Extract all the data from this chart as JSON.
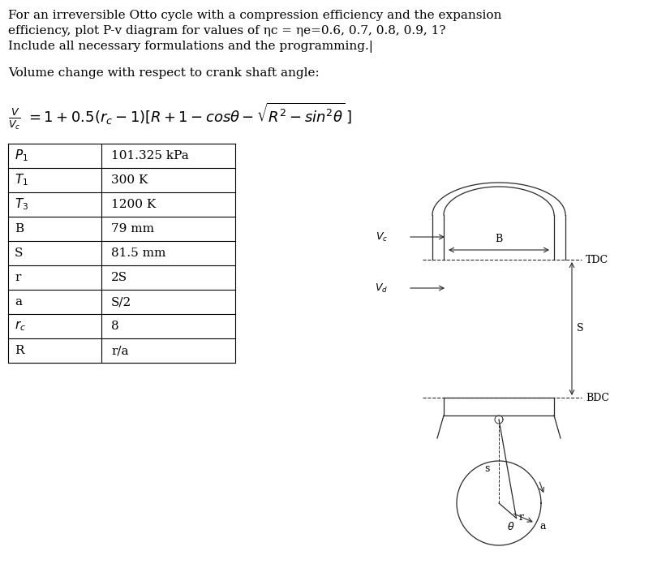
{
  "bg_color": "#ffffff",
  "text_color": "#000000",
  "title_lines": [
    "For an irreversible Otto cycle with a compression efficiency and the expansion",
    "efficiency, plot P-v diagram for values of ηc = ηe=0.6, 0.7, 0.8, 0.9, 1?",
    "Include all necessary formulations and the programming.|"
  ],
  "subtitle": "Volume change with respect to crank shaft angle:",
  "table_data": [
    [
      "$P_1$",
      "101.325 kPa"
    ],
    [
      "$T_1$",
      "300 K"
    ],
    [
      "$T_3$",
      "1200 K"
    ],
    [
      "B",
      "79 mm"
    ],
    [
      "S",
      "81.5 mm"
    ],
    [
      "r",
      "2S"
    ],
    [
      "a",
      "S/2"
    ],
    [
      "$r_c$",
      "8"
    ],
    [
      "R",
      "r/a"
    ]
  ],
  "font_size_title": 11,
  "font_size_subtitle": 11,
  "font_size_table": 11,
  "diagram_color": "#2a2a2a"
}
